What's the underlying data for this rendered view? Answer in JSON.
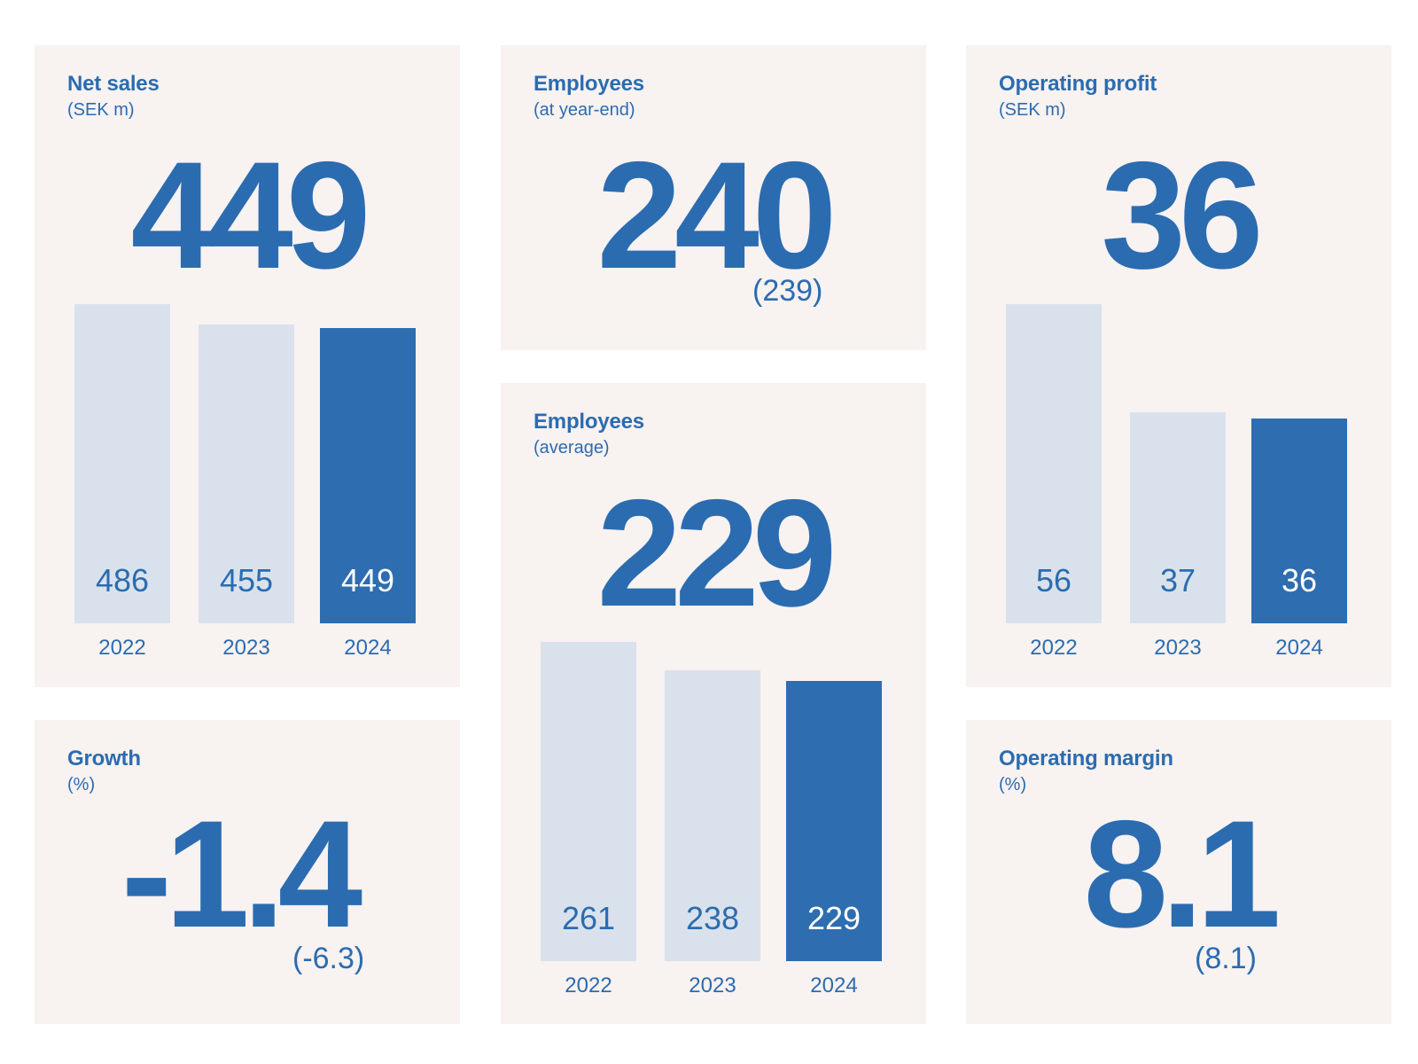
{
  "colors": {
    "card_background": "#f8f2f1",
    "accent": "#2e6db0",
    "bar_previous": "#d9e2ec",
    "text": "#2b6cb0"
  },
  "net_sales": {
    "title": "Net sales",
    "subtitle": "(SEK m)",
    "value": "449"
  },
  "employees_year_end": {
    "title": "Employees",
    "subtitle": "(at year-end)",
    "value": "240",
    "previous": "(239)"
  },
  "operating_profit": {
    "title": "Operating profit",
    "subtitle": "(SEK m)",
    "value": "36"
  },
  "employees_average": {
    "title": "Employees",
    "subtitle": "(average)",
    "value": "229"
  },
  "growth": {
    "title": "Growth",
    "subtitle": "(%)",
    "value": "-1.4",
    "previous": "(-6.3)"
  },
  "operating_margin": {
    "title": "Operating margin",
    "subtitle": "(%)",
    "value": "8.1",
    "previous": "(8.1)"
  },
  "chart_data": [
    {
      "id": "net-sales",
      "type": "bar",
      "title": "Net sales",
      "categories": [
        "2022",
        "2023",
        "2024"
      ],
      "values": [
        486,
        455,
        449
      ],
      "highlight_index": 2
    },
    {
      "id": "operating-profit",
      "type": "bar",
      "title": "Operating profit",
      "categories": [
        "2022",
        "2023",
        "2024"
      ],
      "values": [
        56,
        37,
        36
      ],
      "highlight_index": 2
    },
    {
      "id": "employees-average",
      "type": "bar",
      "title": "Employees",
      "categories": [
        "2022",
        "2023",
        "2024"
      ],
      "values": [
        261,
        238,
        229
      ],
      "highlight_index": 2
    }
  ]
}
